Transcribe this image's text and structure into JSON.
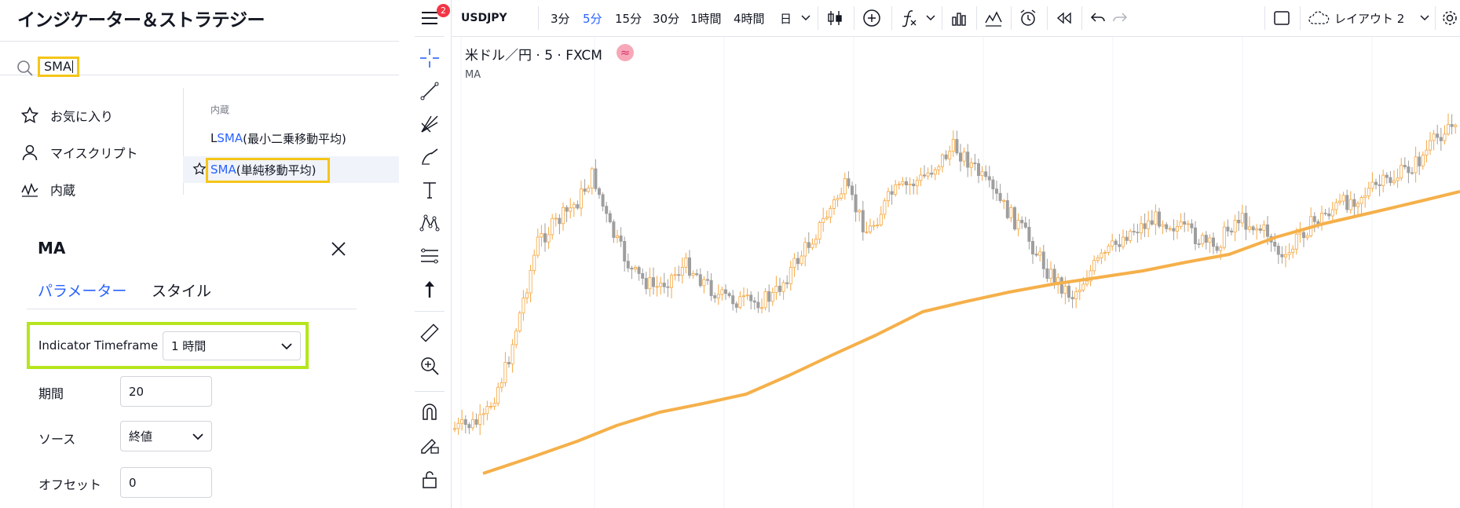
{
  "dialog": {
    "title": "インジケーター＆ストラテジー",
    "search_value": "SMA",
    "categories": [
      {
        "label": "お気に入り",
        "icon": "star-outline-icon"
      },
      {
        "label": "マイスクリプト",
        "icon": "user-icon"
      },
      {
        "label": "内蔵",
        "icon": "chart-wave-icon"
      }
    ],
    "results_header": "内蔵",
    "results": [
      {
        "prefix": "L",
        "match": "SMA",
        "suffix": " (最小二乗移動平均)"
      },
      {
        "prefix": "",
        "match": "SMA",
        "suffix": " (単純移動平均)"
      }
    ],
    "highlight_color": "#f5c518"
  },
  "settings": {
    "title": "MA",
    "tabs": [
      {
        "label": "パラメーター",
        "active": true
      },
      {
        "label": "スタイル",
        "active": false
      }
    ],
    "timeframe_label": "Indicator Timeframe",
    "timeframe_value": "1 時間",
    "period_label": "期間",
    "period_value": "20",
    "source_label": "ソース",
    "source_value": "終値",
    "offset_label": "オフセット",
    "offset_value": "0",
    "highlight_color": "#b5e61d"
  },
  "toolbar": {
    "badge": "2",
    "symbol": "USDJPY",
    "intervals": [
      {
        "label": "3分",
        "active": false
      },
      {
        "label": "5分",
        "active": true
      },
      {
        "label": "15分",
        "active": false
      },
      {
        "label": "30分",
        "active": false
      },
      {
        "label": "1時間",
        "active": false
      },
      {
        "label": "4時間",
        "active": false
      },
      {
        "label": "日",
        "active": false
      }
    ],
    "layout_label": "レイアウト 2",
    "accent_color": "#2962ff"
  },
  "chart": {
    "legend_title": "米ドル／円 · 5 · FXCM",
    "legend_status_icon": "≈",
    "legend_indicator": "MA",
    "up_color": "#f5a742",
    "down_color": "#9e9e9e",
    "ma_color": "#f5b04a"
  }
}
